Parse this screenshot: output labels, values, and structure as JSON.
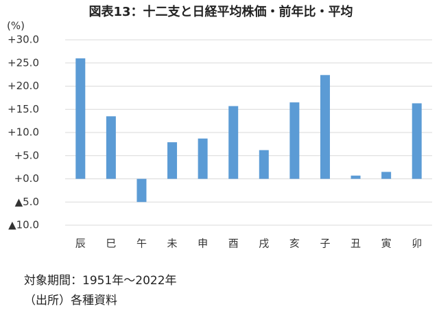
{
  "chart_data": {
    "type": "bar",
    "title": "図表13：十二支と日経平均株価・前年比・平均",
    "unit": "(%)",
    "categories": [
      "辰",
      "巳",
      "午",
      "未",
      "申",
      "酉",
      "戌",
      "亥",
      "子",
      "丑",
      "寅",
      "卯"
    ],
    "values": [
      26.0,
      13.5,
      -5.0,
      7.9,
      8.7,
      15.7,
      6.2,
      16.5,
      22.4,
      0.7,
      1.5,
      16.3
    ],
    "color": "#5b9bd5",
    "ylim": [
      -10,
      30
    ],
    "yticks": [
      {
        "value": 30,
        "label": "+30.0"
      },
      {
        "value": 25,
        "label": "+25.0"
      },
      {
        "value": 20,
        "label": "+20.0"
      },
      {
        "value": 15,
        "label": "+15.0"
      },
      {
        "value": 10,
        "label": "+10.0"
      },
      {
        "value": 5,
        "label": "+5.0"
      },
      {
        "value": 0,
        "label": "+0.0"
      },
      {
        "value": -5,
        "label": "▲5.0"
      },
      {
        "value": -10,
        "label": "▲10.0"
      }
    ],
    "grid": true,
    "notes": [
      "対象期間：1951年～2022年",
      "（出所）各種資料"
    ]
  }
}
